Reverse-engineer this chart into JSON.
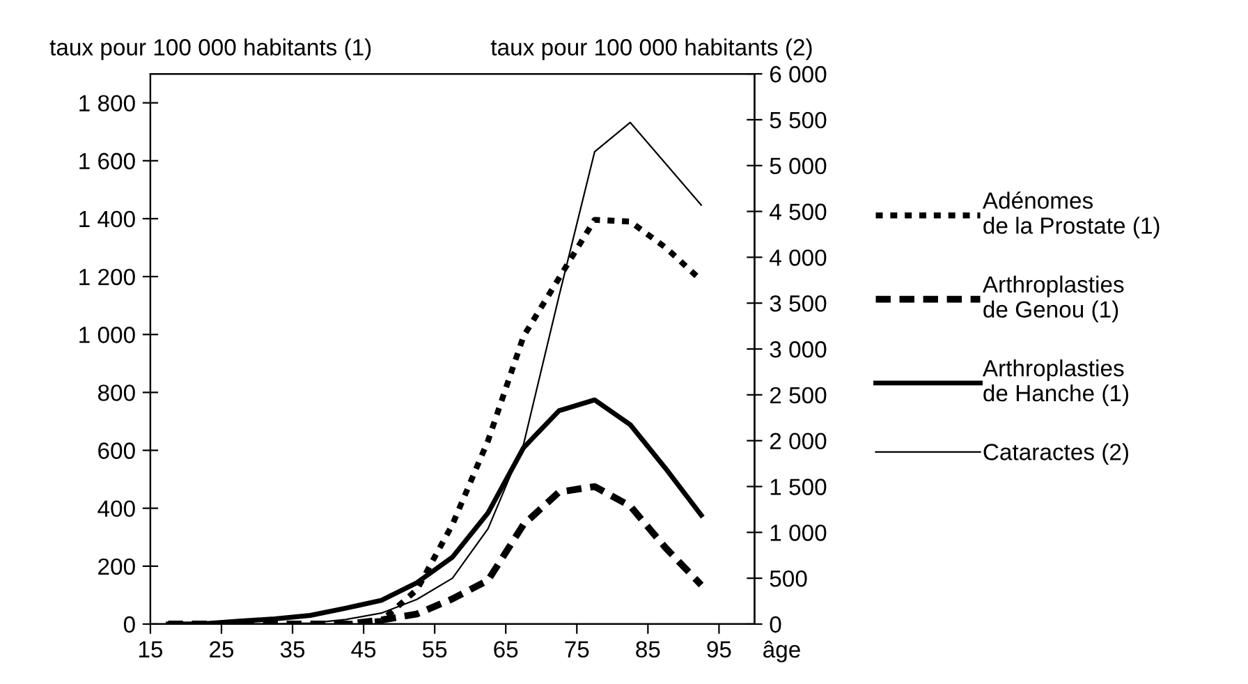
{
  "chart_data": {
    "type": "line",
    "ylabel": "taux pour 100 000 habitants (1)",
    "y2label": "taux pour 100 000 habitants (2)",
    "xlabel": "âge",
    "x": [
      17.5,
      22.5,
      27.5,
      32.5,
      37.5,
      42.5,
      47.5,
      52.5,
      57.5,
      62.5,
      67.5,
      72.5,
      77.5,
      82.5,
      87.5,
      92.5
    ],
    "series": [
      {
        "name": "Adénomes\nde la Prostate (1)",
        "color": "#000000",
        "line_style": "dotted",
        "values": [
          null,
          null,
          null,
          null,
          null,
          0,
          11,
          119,
          344,
          633,
          994,
          1195,
          1396,
          1390,
          1300,
          1187
        ]
      },
      {
        "name": "Arthroplasties\nde Genou (1)",
        "color": "#000000",
        "line_style": "dashed",
        "values": [
          0,
          0,
          0,
          0,
          0,
          0,
          14,
          35,
          87,
          151,
          344,
          456,
          475,
          408,
          263,
          135
        ]
      },
      {
        "name": "Arthroplasties\nde Hanche (1)",
        "color": "#000000",
        "line_style": "solid",
        "values": [
          0,
          1,
          10,
          18,
          30,
          55,
          82,
          143,
          231,
          384,
          609,
          737,
          774,
          689,
          537,
          376
        ]
      },
      {
        "name": "Cataractes (2)",
        "color": "#000000",
        "line_style": "solid",
        "axis": "y2",
        "values": [
          0,
          0,
          0,
          0,
          10,
          50,
          120,
          270,
          500,
          1040,
          1960,
          3580,
          5150,
          5470,
          5020,
          4570
        ]
      }
    ],
    "xlim": [
      15,
      100
    ],
    "xticks": [
      15,
      25,
      35,
      45,
      55,
      65,
      75,
      85,
      95
    ],
    "ylim": [
      0,
      1900
    ],
    "yticks": [
      0,
      200,
      400,
      600,
      800,
      {
        "value": 1000,
        "label": "1 000"
      },
      {
        "value": 1200,
        "label": "1 200"
      },
      {
        "value": 1400,
        "label": "1 400"
      },
      {
        "value": 1600,
        "label": "1 600"
      },
      {
        "value": 1800,
        "label": "1 800"
      }
    ],
    "y2lim": [
      0,
      6000
    ],
    "y2ticks": [
      0,
      500,
      {
        "value": 1000,
        "label": "1 000"
      },
      {
        "value": 1500,
        "label": "1 500"
      },
      {
        "value": 2000,
        "label": "2 000"
      },
      {
        "value": 2500,
        "label": "2 500"
      },
      {
        "value": 3000,
        "label": "3 000"
      },
      {
        "value": 3500,
        "label": "3 500"
      },
      {
        "value": 4000,
        "label": "4 000"
      },
      {
        "value": 4500,
        "label": "4 500"
      },
      {
        "value": 5000,
        "label": "5 000"
      },
      {
        "value": 5500,
        "label": "5 500"
      },
      {
        "value": 6000,
        "label": "6 000"
      }
    ],
    "grid": false,
    "legend": "right",
    "marker": "none"
  }
}
